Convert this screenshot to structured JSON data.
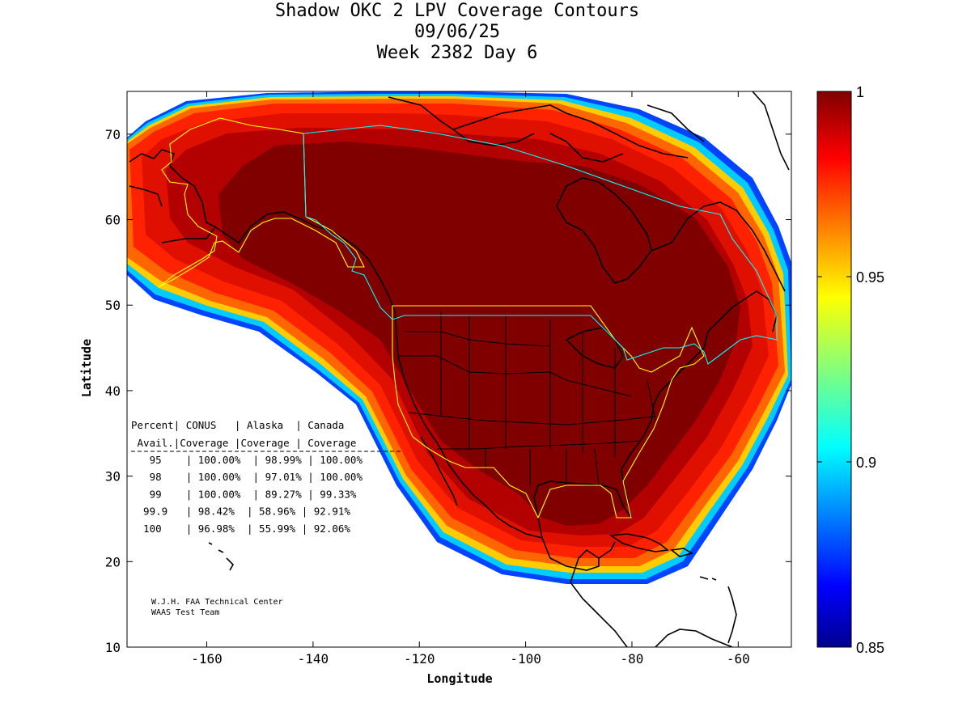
{
  "title": {
    "line1": "Shadow OKC 2 LPV Coverage Contours",
    "line2": "09/06/25",
    "line3": "Week 2382 Day 6"
  },
  "axes": {
    "xlabel": "Longitude",
    "ylabel": "Latitude",
    "xlim": [
      -175,
      -50
    ],
    "ylim": [
      10,
      75
    ],
    "xticks": [
      -160,
      -140,
      -120,
      -100,
      -80,
      -60
    ],
    "yticks": [
      10,
      20,
      30,
      40,
      50,
      60,
      70
    ]
  },
  "colorbar": {
    "range": [
      0.85,
      1.0
    ],
    "ticks": [
      {
        "value": 1.0,
        "label": "1"
      },
      {
        "value": 0.95,
        "label": "0.95"
      },
      {
        "value": 0.9,
        "label": "0.9"
      },
      {
        "value": 0.85,
        "label": "0.85"
      }
    ],
    "colormap": "jet"
  },
  "stats_table": {
    "header1": [
      "Percent",
      "CONUS",
      "Alaska",
      "Canada"
    ],
    "header2": [
      "Avail.",
      "Coverage",
      "Coverage",
      "Coverage"
    ],
    "rows": [
      [
        "95",
        "100.00%",
        "98.99%",
        "100.00%"
      ],
      [
        "98",
        "100.00%",
        "97.01%",
        "100.00%"
      ],
      [
        "99",
        "100.00%",
        "89.27%",
        "99.33%"
      ],
      [
        "99.9",
        "98.42%",
        "58.96%",
        "92.91%"
      ],
      [
        "100",
        "96.98%",
        "55.99%",
        "92.06%"
      ]
    ]
  },
  "credit": {
    "line1": "W.J.H. FAA Technical Center",
    "line2": "WAAS Test Team"
  },
  "colors": {
    "core": "#800000",
    "inner_band": "#b30000",
    "band_red": "#e01000",
    "band_bright_red": "#ff2200",
    "band_orange": "#ff6600",
    "band_yellow": "#ffcc00",
    "band_cyan": "#00ccff",
    "band_blue": "#0044ff",
    "coastline": "#000000",
    "region_yellow": "#ffff00",
    "region_cyan": "#00ffff"
  }
}
